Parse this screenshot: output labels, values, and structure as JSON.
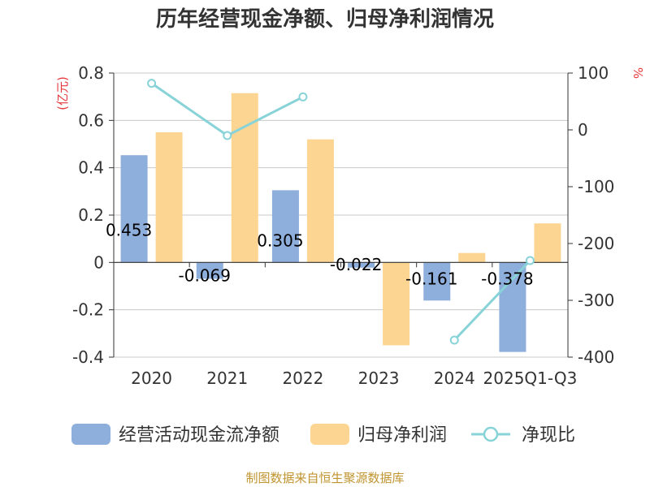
{
  "chart_data": {
    "type": "bar",
    "title": "历年经营现金净额、归母净利润情况",
    "categories": [
      "2020",
      "2021",
      "2022",
      "2023",
      "2024",
      "2025Q1-Q3"
    ],
    "y_left": {
      "unit": "(亿元)",
      "ylim": [
        -0.4,
        0.8
      ],
      "ticks": [
        "0.8",
        "0.6",
        "0.4",
        "0.2",
        "0",
        "-0.2",
        "-0.4"
      ]
    },
    "y_right": {
      "unit": "%",
      "ylim": [
        -400,
        100
      ],
      "ticks": [
        "100",
        "0",
        "-100",
        "-200",
        "-300",
        "-400"
      ]
    },
    "series": [
      {
        "name": "经营活动现金流净额",
        "type": "bar",
        "axis": "left",
        "color": "#8eaedb",
        "values": [
          0.453,
          -0.069,
          0.305,
          -0.022,
          -0.161,
          -0.378
        ],
        "labels": [
          "0.453",
          "-0.069",
          "0.305",
          "-0.022",
          "-0.161",
          "-0.378"
        ]
      },
      {
        "name": "归母净利润",
        "type": "bar",
        "axis": "left",
        "color": "#fdd592",
        "values": [
          0.55,
          0.715,
          0.52,
          -0.35,
          0.04,
          0.165
        ]
      },
      {
        "name": "净现比",
        "type": "line",
        "axis": "right",
        "color": "#88d3d8",
        "values": [
          82,
          -10,
          58,
          null,
          -370,
          -230
        ]
      }
    ],
    "grid": true,
    "legend_position": "bottom"
  },
  "source": "制图数据来自恒生聚源数据库"
}
